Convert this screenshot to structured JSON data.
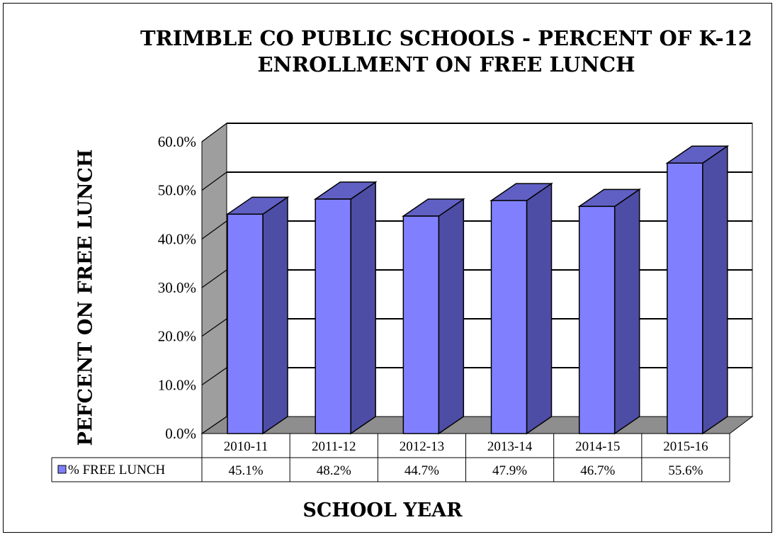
{
  "chart_data": {
    "type": "bar",
    "title": "TRIMBLE CO PUBLIC SCHOOLS - PERCENT OF K-12 ENROLLMENT ON FREE LUNCH",
    "xlabel": "SCHOOL YEAR",
    "ylabel": "PEFCENT ON FREE LUNCH",
    "categories": [
      "2010-11",
      "2011-12",
      "2012-13",
      "2013-14",
      "2014-15",
      "2015-16"
    ],
    "series": [
      {
        "name": "% FREE LUNCH",
        "values": [
          45.1,
          48.2,
          44.7,
          47.9,
          46.7,
          55.6
        ],
        "labels": [
          "45.1%",
          "48.2%",
          "44.7%",
          "47.9%",
          "46.7%",
          "55.6%"
        ]
      }
    ],
    "ylim": [
      0,
      60
    ],
    "yticks": [
      "0.0%",
      "10.0%",
      "20.0%",
      "30.0%",
      "40.0%",
      "50.0%",
      "60.0%"
    ],
    "grid": true,
    "three_d": true,
    "data_table": true,
    "colors": {
      "bar_front": "#8080ff",
      "bar_side": "#4d4da6",
      "bar_top": "#6060c4",
      "wall": "#9e9e9e",
      "floor": "#8e8e8e"
    }
  }
}
